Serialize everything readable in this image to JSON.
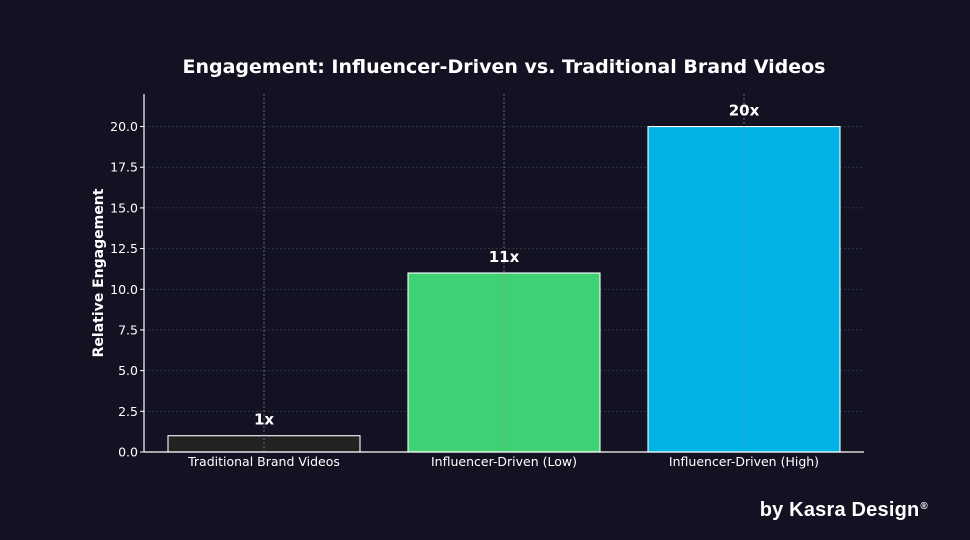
{
  "chart_data": {
    "type": "bar",
    "title": "Engagement: Influencer-Driven vs. Traditional Brand Videos",
    "xlabel": "",
    "ylabel": "Relative Engagement",
    "categories": [
      "Traditional Brand Videos",
      "Influencer-Driven (Low)",
      "Influencer-Driven (High)"
    ],
    "values": [
      1,
      11,
      20
    ],
    "data_labels": [
      "1x",
      "11x",
      "20x"
    ],
    "colors": [
      "#222222",
      "#3ed274",
      "#00b3e6"
    ],
    "ylim": [
      0,
      22
    ],
    "yticks": [
      0.0,
      2.5,
      5.0,
      7.5,
      10.0,
      12.5,
      15.0,
      17.5,
      20.0
    ],
    "ytick_labels": [
      "0.0",
      "2.5",
      "5.0",
      "7.5",
      "10.0",
      "12.5",
      "15.0",
      "17.5",
      "20.0"
    ],
    "grid": true,
    "background": "#121222"
  },
  "watermark": {
    "text": "by Kasra Design",
    "mark": "®"
  }
}
